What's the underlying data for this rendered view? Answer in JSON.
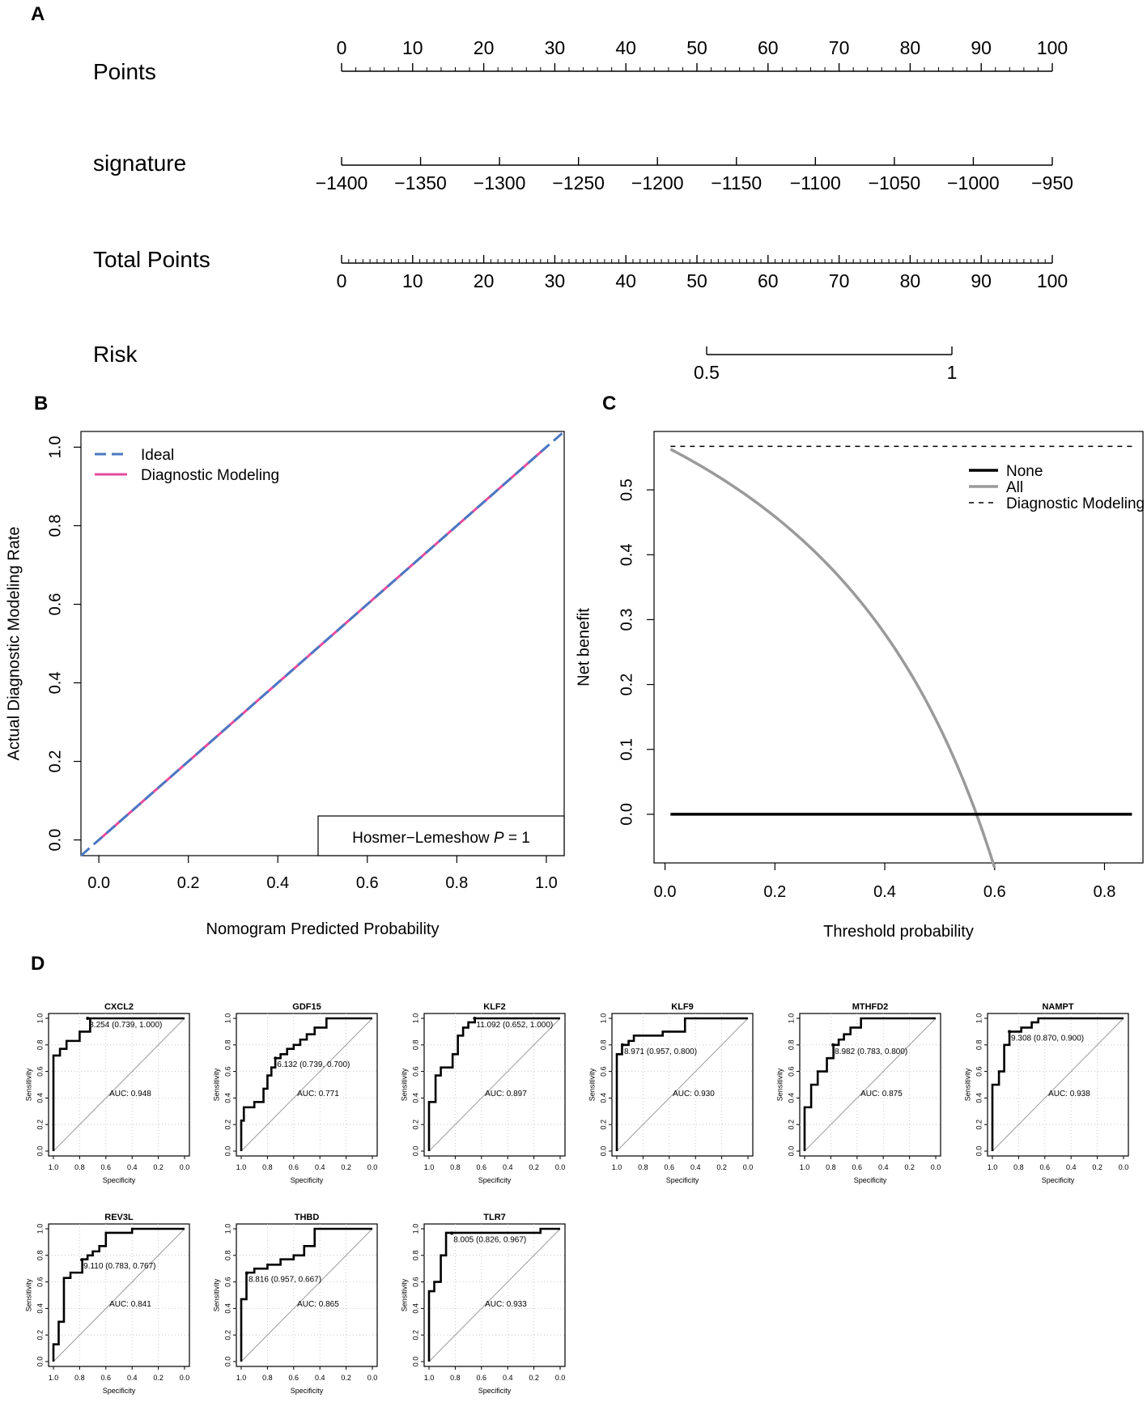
{
  "panels": {
    "a": "A",
    "b": "B",
    "c": "C",
    "d": "D"
  },
  "chart_data": [
    {
      "type": "nomogram",
      "panel": "A",
      "rows": [
        {
          "label": "Points",
          "range": [
            0,
            100
          ],
          "tick_labels": [
            "0",
            "10",
            "20",
            "30",
            "40",
            "50",
            "60",
            "70",
            "80",
            "90",
            "100"
          ],
          "labels_position": "above"
        },
        {
          "label": "signature",
          "range": [
            -1400,
            -950
          ],
          "tick_labels": [
            "−1400",
            "−1350",
            "−1300",
            "−1250",
            "−1200",
            "−1150",
            "−1100",
            "−1050",
            "−1000",
            "−950"
          ],
          "labels_position": "below"
        },
        {
          "label": "Total Points",
          "range": [
            0,
            100
          ],
          "tick_labels": [
            "0",
            "10",
            "20",
            "30",
            "40",
            "50",
            "60",
            "70",
            "80",
            "90",
            "100"
          ],
          "labels_position": "below"
        },
        {
          "label": "Risk",
          "range": [
            0.5,
            1
          ],
          "tick_labels": [
            "0.5",
            "1"
          ],
          "labels_position": "below"
        }
      ]
    },
    {
      "type": "line",
      "panel": "B",
      "xlabel": "Nomogram Predicted Probability",
      "ylabel": "Actual Diagnostic Modeling Rate",
      "xlim": [
        -0.04,
        1.04
      ],
      "ylim": [
        -0.04,
        1.04
      ],
      "x_ticks": [
        "0.0",
        "0.2",
        "0.4",
        "0.6",
        "0.8",
        "1.0"
      ],
      "y_ticks": [
        "0.0",
        "0.2",
        "0.4",
        "0.6",
        "0.8",
        "1.0"
      ],
      "series": [
        {
          "name": "Ideal",
          "color": "#4a78c2",
          "style": "dashed",
          "x": [
            -0.04,
            1.04
          ],
          "y": [
            -0.04,
            1.04
          ]
        },
        {
          "name": "Diagnostic Modeling",
          "color": "#e64b9c",
          "style": "solid",
          "x": [
            0,
            1
          ],
          "y": [
            0,
            1
          ]
        }
      ],
      "annotation": {
        "text": "Hosmer−Lemeshow",
        "p_label": "P",
        "p_value": "= 1"
      },
      "legend": "top-left"
    },
    {
      "type": "line",
      "panel": "C",
      "xlabel": "Threshold probability",
      "ylabel": "Net benefit",
      "xlim": [
        -0.02,
        0.87
      ],
      "ylim": [
        -0.075,
        0.59
      ],
      "x_ticks": [
        "0.0",
        "0.2",
        "0.4",
        "0.6",
        "0.8"
      ],
      "y_ticks": [
        "0.0",
        "0.1",
        "0.2",
        "0.3",
        "0.4",
        "0.5"
      ],
      "prevalence": 0.567,
      "series": [
        {
          "name": "None",
          "color": "#000000",
          "style": "solid",
          "x": [
            0.01,
            0.85
          ],
          "y": [
            0,
            0
          ]
        },
        {
          "name": "All",
          "color": "#9a9a9a",
          "style": "solid",
          "x_range": [
            0.01,
            0.6
          ]
        },
        {
          "name": "Diagnostic Modeling",
          "color": "#000000",
          "style": "dashed",
          "x": [
            0.01,
            0.85
          ],
          "y": [
            0.567,
            0.567
          ]
        }
      ],
      "legend": "top-right"
    },
    {
      "type": "roc-grid",
      "panel": "D",
      "xlabel": "Specificity",
      "ylabel": "Sensitivity",
      "ticks": [
        "1.0",
        "0.8",
        "0.6",
        "0.4",
        "0.2",
        "0.0"
      ],
      "y_ticks": [
        "0.0",
        "0.2",
        "0.4",
        "0.6",
        "0.8",
        "1.0"
      ],
      "curves": [
        {
          "gene": "CXCL2",
          "threshold_label": "8.254 (0.739, 1.000)",
          "auc_label": "AUC: 0.948",
          "point": [
            0.739,
            1.0
          ],
          "spec": [
            1,
            1,
            0.95,
            0.95,
            0.9,
            0.9,
            0.8,
            0.8,
            0.72,
            0.72,
            0
          ],
          "sens": [
            0,
            0.72,
            0.72,
            0.77,
            0.77,
            0.83,
            0.83,
            0.9,
            0.9,
            1,
            1
          ]
        },
        {
          "gene": "GDF15",
          "threshold_label": "6.132 (0.739, 0.700)",
          "auc_label": "AUC: 0.771",
          "point": [
            0.739,
            0.7
          ],
          "spec": [
            1,
            1,
            0.98,
            0.98,
            0.9,
            0.9,
            0.83,
            0.83,
            0.8,
            0.8,
            0.77,
            0.77,
            0.74,
            0.74,
            0.7,
            0.7,
            0.65,
            0.65,
            0.6,
            0.6,
            0.55,
            0.55,
            0.5,
            0.5,
            0.44,
            0.44,
            0.35,
            0.35,
            0
          ],
          "sens": [
            0,
            0.23,
            0.23,
            0.33,
            0.33,
            0.37,
            0.37,
            0.47,
            0.47,
            0.57,
            0.57,
            0.63,
            0.63,
            0.7,
            0.7,
            0.73,
            0.73,
            0.77,
            0.77,
            0.8,
            0.8,
            0.84,
            0.84,
            0.88,
            0.88,
            0.93,
            0.93,
            1,
            1
          ]
        },
        {
          "gene": "KLF2",
          "threshold_label": "11.092 (0.652, 1.000)",
          "auc_label": "AUC: 0.897",
          "point": [
            0.652,
            1.0
          ],
          "spec": [
            1,
            1,
            0.95,
            0.95,
            0.91,
            0.91,
            0.82,
            0.82,
            0.78,
            0.78,
            0.74,
            0.74,
            0.7,
            0.7,
            0.65,
            0.65,
            0
          ],
          "sens": [
            0,
            0.37,
            0.37,
            0.57,
            0.57,
            0.63,
            0.63,
            0.73,
            0.73,
            0.87,
            0.87,
            0.93,
            0.93,
            0.97,
            0.97,
            1,
            1
          ]
        },
        {
          "gene": "KLF9",
          "threshold_label": "8.971 (0.957, 0.800)",
          "auc_label": "AUC: 0.930",
          "point": [
            0.957,
            0.8
          ],
          "spec": [
            1,
            1,
            0.96,
            0.96,
            0.91,
            0.91,
            0.87,
            0.87,
            0.65,
            0.65,
            0.48,
            0.48,
            0
          ],
          "sens": [
            0,
            0.73,
            0.73,
            0.8,
            0.8,
            0.83,
            0.83,
            0.87,
            0.87,
            0.9,
            0.9,
            1,
            1
          ]
        },
        {
          "gene": "MTHFD2",
          "threshold_label": "8.982 (0.783, 0.800)",
          "auc_label": "AUC: 0.875",
          "point": [
            0.783,
            0.8
          ],
          "spec": [
            1,
            1,
            0.95,
            0.95,
            0.9,
            0.9,
            0.83,
            0.83,
            0.78,
            0.78,
            0.74,
            0.74,
            0.7,
            0.7,
            0.65,
            0.65,
            0.57,
            0.57,
            0
          ],
          "sens": [
            0,
            0.33,
            0.33,
            0.5,
            0.5,
            0.6,
            0.6,
            0.7,
            0.7,
            0.8,
            0.8,
            0.84,
            0.84,
            0.88,
            0.88,
            0.93,
            0.93,
            1,
            1
          ]
        },
        {
          "gene": "NAMPT",
          "threshold_label": "9.308 (0.870, 0.900)",
          "auc_label": "AUC: 0.938",
          "point": [
            0.87,
            0.9
          ],
          "spec": [
            1,
            1,
            0.95,
            0.95,
            0.91,
            0.91,
            0.87,
            0.87,
            0.78,
            0.78,
            0.7,
            0.7,
            0.65,
            0.65,
            0
          ],
          "sens": [
            0,
            0.5,
            0.5,
            0.6,
            0.6,
            0.8,
            0.8,
            0.9,
            0.9,
            0.93,
            0.93,
            0.97,
            0.97,
            1,
            1
          ]
        },
        {
          "gene": "REV3L",
          "threshold_label": "9.110 (0.783, 0.767)",
          "auc_label": "AUC: 0.841",
          "point": [
            0.783,
            0.767
          ],
          "spec": [
            1,
            1,
            0.96,
            0.96,
            0.92,
            0.92,
            0.87,
            0.87,
            0.78,
            0.78,
            0.74,
            0.74,
            0.7,
            0.7,
            0.65,
            0.65,
            0.6,
            0.6,
            0.4,
            0.4,
            0.3,
            0.3,
            0
          ],
          "sens": [
            0,
            0.13,
            0.13,
            0.3,
            0.3,
            0.63,
            0.63,
            0.67,
            0.67,
            0.77,
            0.77,
            0.8,
            0.8,
            0.83,
            0.83,
            0.87,
            0.87,
            0.97,
            0.97,
            1,
            1,
            1,
            1
          ]
        },
        {
          "gene": "THBD",
          "threshold_label": "8.816 (0.957, 0.667)",
          "auc_label": "AUC: 0.865",
          "point": [
            0.957,
            0.667
          ],
          "spec": [
            1,
            1,
            0.96,
            0.96,
            0.9,
            0.9,
            0.8,
            0.8,
            0.7,
            0.7,
            0.6,
            0.6,
            0.52,
            0.52,
            0.44,
            0.44,
            0
          ],
          "sens": [
            0,
            0.47,
            0.47,
            0.67,
            0.67,
            0.7,
            0.7,
            0.73,
            0.73,
            0.77,
            0.77,
            0.8,
            0.8,
            0.87,
            0.87,
            1,
            1
          ]
        },
        {
          "gene": "TLR7",
          "threshold_label": "8.005 (0.826, 0.967)",
          "auc_label": "AUC: 0.933",
          "point": [
            0.826,
            0.967
          ],
          "spec": [
            1,
            1,
            0.96,
            0.96,
            0.91,
            0.91,
            0.87,
            0.87,
            0.83,
            0.83,
            0.15,
            0.15,
            0
          ],
          "sens": [
            0,
            0.53,
            0.53,
            0.6,
            0.6,
            0.8,
            0.8,
            0.97,
            0.97,
            0.97,
            0.97,
            1,
            1
          ]
        }
      ]
    }
  ]
}
